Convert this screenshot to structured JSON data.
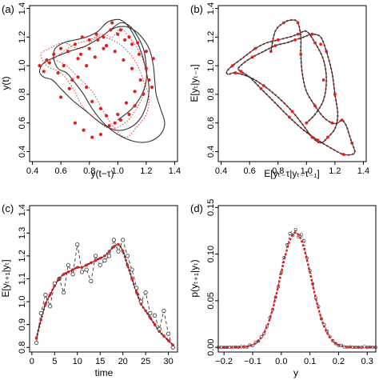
{
  "chart_data": [
    {
      "panel": "(a)",
      "type": "scatter",
      "xlabel": "y(t−τ)",
      "ylabel": "y(t)",
      "xlim": [
        0.38,
        1.42
      ],
      "ylim": [
        0.33,
        1.42
      ],
      "xticks": [
        0.4,
        0.6,
        0.8,
        1.0,
        1.2,
        1.4
      ],
      "yticks": [
        0.4,
        0.6,
        0.8,
        1.0,
        1.2,
        1.4
      ],
      "xtick_labels": [
        "0.4",
        "0.6",
        "0.8",
        "1.0",
        "1.2",
        "1.4"
      ],
      "ytick_labels": [
        "0.4",
        "0.6",
        "0.8",
        "1.0",
        "1.2",
        "1.4"
      ],
      "series": [
        {
          "style": "solid",
          "color": "#333333",
          "x": [
            0.95,
            1.0,
            1.07,
            1.15,
            1.22,
            1.25,
            1.26,
            1.27,
            1.3,
            1.33,
            1.3,
            1.22,
            1.12,
            1.0,
            0.9,
            0.82,
            0.76,
            0.7,
            0.64,
            0.58,
            0.55,
            0.56,
            0.62,
            0.7,
            0.78,
            0.86,
            0.92,
            0.97,
            1.02,
            1.07,
            1.12,
            1.17,
            1.2,
            1.22,
            1.2,
            1.15,
            1.07,
            0.98,
            0.88,
            0.78,
            0.68,
            0.6,
            0.54,
            0.48,
            0.45,
            0.48,
            0.56,
            0.66,
            0.78,
            0.88,
            0.96,
            1.02,
            1.08,
            1.13,
            1.18,
            1.2,
            1.2,
            1.17,
            1.1,
            1.0
          ],
          "y": [
            1.25,
            1.27,
            1.27,
            1.22,
            1.12,
            1.0,
            0.9,
            0.8,
            0.7,
            0.6,
            0.52,
            0.47,
            0.47,
            0.52,
            0.6,
            0.7,
            0.8,
            0.88,
            0.95,
            0.98,
            1.05,
            1.12,
            1.16,
            1.18,
            1.2,
            1.24,
            1.3,
            1.32,
            1.32,
            1.28,
            1.2,
            1.08,
            0.96,
            0.84,
            0.72,
            0.62,
            0.56,
            0.55,
            0.6,
            0.68,
            0.76,
            0.84,
            0.9,
            0.92,
            0.96,
            1.02,
            1.06,
            1.1,
            1.14,
            1.2,
            1.26,
            1.3,
            1.28,
            1.22,
            1.12,
            1.0,
            0.9,
            0.8,
            0.7,
            0.62
          ]
        },
        {
          "style": "dotted",
          "color": "#e02020",
          "x": [
            0.45,
            0.55,
            0.62,
            0.7,
            0.8,
            0.9,
            0.96,
            1.02,
            1.08,
            1.15,
            1.2,
            1.18,
            1.12,
            1.05,
            0.95,
            0.85,
            0.75,
            0.68,
            0.6,
            0.5,
            0.46,
            0.52,
            0.62,
            0.74,
            0.86,
            0.96,
            1.05,
            1.13,
            1.18,
            1.22,
            1.2,
            1.14,
            1.06,
            0.98,
            0.9,
            0.82,
            0.72,
            0.64,
            0.56
          ],
          "y": [
            1.0,
            1.05,
            1.1,
            1.15,
            1.18,
            1.22,
            1.2,
            1.26,
            1.2,
            1.1,
            0.95,
            0.8,
            0.68,
            0.6,
            0.56,
            0.62,
            0.72,
            0.85,
            0.95,
            1.0,
            1.08,
            1.12,
            1.16,
            1.12,
            1.2,
            1.18,
            1.12,
            1.02,
            0.9,
            0.78,
            0.66,
            0.58,
            0.5,
            0.56,
            0.68,
            0.82,
            0.92,
            1.0,
            1.04
          ]
        }
      ],
      "points_color": "#e02020",
      "points": {
        "x": [
          0.45,
          0.5,
          0.55,
          0.58,
          0.6,
          0.62,
          0.65,
          0.68,
          0.7,
          0.72,
          0.75,
          0.78,
          0.8,
          0.82,
          0.85,
          0.88,
          0.9,
          0.92,
          0.95,
          0.98,
          1.0,
          1.02,
          1.05,
          1.08,
          1.1,
          1.12,
          1.15,
          1.18,
          1.2,
          1.22,
          1.25,
          0.6,
          0.66,
          0.72,
          0.78,
          0.84,
          0.9,
          0.96,
          1.02,
          1.08,
          1.14,
          1.2,
          1.24,
          0.7,
          0.76,
          0.82,
          0.88,
          0.94,
          1.0,
          1.06,
          1.12,
          1.16,
          1.1,
          1.04,
          0.98,
          0.92,
          0.86,
          0.8,
          0.74,
          0.52,
          0.48
        ],
        "y": [
          1.0,
          1.04,
          1.08,
          0.95,
          1.12,
          1.0,
          1.1,
          0.9,
          1.15,
          1.05,
          1.2,
          0.85,
          1.18,
          0.75,
          1.22,
          0.7,
          1.2,
          0.65,
          1.25,
          0.6,
          1.22,
          0.62,
          1.18,
          0.66,
          1.15,
          0.72,
          1.08,
          0.8,
          0.98,
          0.9,
          1.05,
          0.78,
          0.84,
          0.92,
          1.0,
          1.06,
          1.12,
          1.3,
          1.25,
          1.2,
          1.16,
          1.1,
          0.85,
          0.6,
          0.55,
          0.5,
          0.52,
          0.58,
          0.66,
          0.74,
          0.82,
          0.9,
          0.98,
          1.04,
          1.1,
          1.14,
          1.18,
          1.12,
          1.08,
          1.02,
          0.96
        ]
      }
    },
    {
      "panel": "(b)",
      "type": "line",
      "xlabel": "E[yₜ₋τ|yₜ₋τ₋₁]",
      "ylabel": "E[yₜ|yₜ₋₁]",
      "xlim": [
        0.38,
        1.42
      ],
      "ylim": [
        0.33,
        1.42
      ],
      "xticks": [
        0.4,
        0.6,
        0.8,
        1.0,
        1.2,
        1.4
      ],
      "yticks": [
        0.4,
        0.6,
        0.8,
        1.0,
        1.2,
        1.4
      ],
      "xtick_labels": [
        "0.4",
        "0.6",
        "0.8",
        "1.0",
        "1.2",
        "1.4"
      ],
      "ytick_labels": [
        "0.4",
        "0.6",
        "0.8",
        "1.0",
        "1.2",
        "1.4"
      ],
      "series": [
        {
          "style": "solid",
          "color": "#333333",
          "x": [
            0.75,
            0.78,
            0.84,
            0.9,
            0.94,
            0.96,
            0.96,
            0.97,
            1.0,
            1.06,
            1.12,
            1.18,
            1.22,
            1.25,
            1.28,
            1.3,
            1.32,
            1.34,
            1.32,
            1.26,
            1.18,
            1.08,
            0.98,
            0.88,
            0.78,
            0.68,
            0.6,
            0.54,
            0.52,
            0.56,
            0.62,
            0.7,
            0.78,
            0.86,
            0.92,
            0.98,
            1.04,
            1.1,
            1.14,
            1.18,
            1.2,
            1.22,
            1.2,
            1.15,
            1.1,
            1.04,
            0.98,
            0.9,
            0.8,
            0.7,
            0.6,
            0.5,
            0.45,
            0.44,
            0.48,
            0.56,
            0.64,
            0.72,
            0.8,
            0.88,
            0.94,
            1.0,
            1.06,
            1.12,
            1.14,
            1.12,
            1.06,
            1.0
          ],
          "y": [
            1.1,
            1.24,
            1.3,
            1.32,
            1.3,
            1.2,
            1.08,
            0.95,
            0.82,
            0.72,
            0.64,
            0.6,
            0.6,
            0.62,
            0.58,
            0.52,
            0.46,
            0.4,
            0.38,
            0.38,
            0.42,
            0.48,
            0.55,
            0.64,
            0.74,
            0.84,
            0.92,
            0.96,
            0.98,
            1.02,
            1.06,
            1.1,
            1.14,
            1.16,
            1.18,
            1.2,
            1.22,
            1.2,
            1.1,
            0.95,
            0.8,
            0.66,
            0.56,
            0.5,
            0.46,
            0.5,
            0.58,
            0.68,
            0.78,
            0.86,
            0.92,
            0.95,
            0.94,
            0.96,
            1.0,
            1.06,
            1.12,
            1.16,
            1.18,
            1.2,
            1.22,
            1.24,
            1.16,
            1.04,
            0.9,
            0.76,
            0.66,
            0.6
          ]
        }
      ],
      "points_color": "#e02020",
      "points": {
        "x": [
          0.75,
          0.84,
          0.94,
          0.96,
          1.06,
          1.18,
          1.25,
          1.32,
          1.26,
          1.08,
          0.88,
          0.68,
          0.54,
          0.62,
          0.78,
          0.92,
          1.04,
          1.14,
          1.2,
          1.15,
          1.04,
          0.9,
          0.7,
          0.5,
          0.48,
          0.64,
          0.8,
          0.94,
          1.06,
          1.12,
          1.0,
          1.1
        ],
        "y": [
          1.1,
          1.3,
          1.3,
          1.08,
          0.72,
          0.6,
          0.62,
          0.46,
          0.38,
          0.48,
          0.64,
          0.84,
          0.96,
          1.06,
          1.14,
          1.18,
          1.22,
          1.1,
          0.8,
          0.5,
          0.5,
          0.68,
          0.86,
          0.95,
          1.0,
          1.12,
          1.18,
          1.22,
          1.16,
          0.9,
          0.6,
          1.15
        ]
      }
    },
    {
      "panel": "(c)",
      "type": "line",
      "xlabel": "time",
      "ylabel": "E[yₜ₊₁|yₜ]",
      "xlim": [
        -0.5,
        32
      ],
      "ylim": [
        0.78,
        1.42
      ],
      "xticks": [
        0,
        5,
        10,
        15,
        20,
        25,
        30
      ],
      "yticks": [
        0.8,
        0.9,
        1.0,
        1.1,
        1.2,
        1.3,
        1.4
      ],
      "xtick_labels": [
        "0",
        "5",
        "10",
        "15",
        "20",
        "25",
        "30"
      ],
      "ytick_labels": [
        "0.8",
        "0.9",
        "1.0",
        "1.1",
        "1.2",
        "1.3",
        "1.4"
      ],
      "series": [
        {
          "name": "",
          "style": "dashed",
          "color": "#333333",
          "x": [
            1,
            2,
            3,
            4,
            5,
            6,
            7,
            8,
            9,
            10,
            11,
            12,
            13,
            14,
            15,
            16,
            17,
            18,
            19,
            20,
            21,
            22,
            23,
            24,
            25,
            26,
            27,
            28,
            29,
            30,
            31
          ],
          "y": [
            0.82,
            0.95,
            1.03,
            0.98,
            1.08,
            1.1,
            1.04,
            1.16,
            1.12,
            1.25,
            1.13,
            1.14,
            1.09,
            1.2,
            1.16,
            1.18,
            1.2,
            1.27,
            1.22,
            1.27,
            1.2,
            1.14,
            1.06,
            1.0,
            1.04,
            0.95,
            0.94,
            0.88,
            0.96,
            0.86,
            0.8
          ]
        },
        {
          "name": "",
          "style": "solid",
          "color": "#333333",
          "x": [
            1,
            2,
            3,
            4,
            5,
            6,
            7,
            8,
            9,
            10,
            11,
            12,
            13,
            14,
            15,
            16,
            17,
            18,
            19,
            20,
            21,
            22,
            23,
            24,
            25,
            26,
            27,
            28,
            29,
            30,
            31
          ],
          "y": [
            0.84,
            0.92,
            0.99,
            1.03,
            1.07,
            1.1,
            1.12,
            1.13,
            1.14,
            1.15,
            1.15,
            1.16,
            1.17,
            1.18,
            1.19,
            1.2,
            1.22,
            1.24,
            1.25,
            1.22,
            1.16,
            1.1,
            1.04,
            0.99,
            0.96,
            0.93,
            0.9,
            0.87,
            0.85,
            0.83,
            0.81
          ]
        }
      ],
      "points_color": "#e02020",
      "points": {
        "x": [
          1,
          2,
          3,
          4,
          5,
          6,
          7,
          8,
          9,
          10,
          11,
          12,
          13,
          14,
          15,
          16,
          17,
          18,
          19,
          20,
          21,
          22,
          23,
          24,
          25,
          26,
          27,
          28,
          29,
          30,
          31
        ],
        "y": [
          0.84,
          0.92,
          0.99,
          1.03,
          1.07,
          1.1,
          1.12,
          1.13,
          1.14,
          1.15,
          1.15,
          1.16,
          1.17,
          1.18,
          1.19,
          1.2,
          1.22,
          1.24,
          1.25,
          1.22,
          1.16,
          1.1,
          1.04,
          0.99,
          0.96,
          0.93,
          0.9,
          0.87,
          0.85,
          0.83,
          0.81
        ]
      },
      "open_points": {
        "x": [
          1,
          2,
          3,
          4,
          5,
          6,
          7,
          8,
          9,
          10,
          11,
          12,
          13,
          14,
          15,
          16,
          17,
          18,
          19,
          20,
          21,
          22,
          23,
          24,
          25,
          26,
          27,
          28,
          29,
          30,
          31
        ],
        "y": [
          0.82,
          0.95,
          1.03,
          0.98,
          1.08,
          1.1,
          1.04,
          1.16,
          1.12,
          1.25,
          1.13,
          1.14,
          1.09,
          1.2,
          1.16,
          1.18,
          1.2,
          1.27,
          1.22,
          1.27,
          1.2,
          1.14,
          1.06,
          1.0,
          1.04,
          0.95,
          0.94,
          0.88,
          0.96,
          0.86,
          0.8
        ]
      }
    },
    {
      "panel": "(d)",
      "type": "line",
      "xlabel": "y",
      "ylabel": "p(yₜ₊₁|yₜ)",
      "xlim": [
        -0.22,
        0.33
      ],
      "ylim": [
        -0.005,
        0.152
      ],
      "xticks": [
        -0.2,
        -0.1,
        0.0,
        0.1,
        0.2,
        0.3
      ],
      "yticks": [
        0.0,
        0.05,
        0.1,
        0.15
      ],
      "xtick_labels": [
        "−0.2",
        "−0.1",
        "0.0",
        "0.1",
        "0.2",
        "0.3"
      ],
      "ytick_labels": [
        "0.00",
        "0.05",
        "0.10",
        "0.15"
      ],
      "series": [
        {
          "style": "solid",
          "color": "#e02020",
          "mean": 0.05,
          "sd": 0.054,
          "peak": 0.123
        },
        {
          "style": "dashed",
          "color": "#333333",
          "mean": 0.05,
          "sd": 0.054,
          "peak": 0.127,
          "noise": 0.012
        }
      ]
    }
  ]
}
